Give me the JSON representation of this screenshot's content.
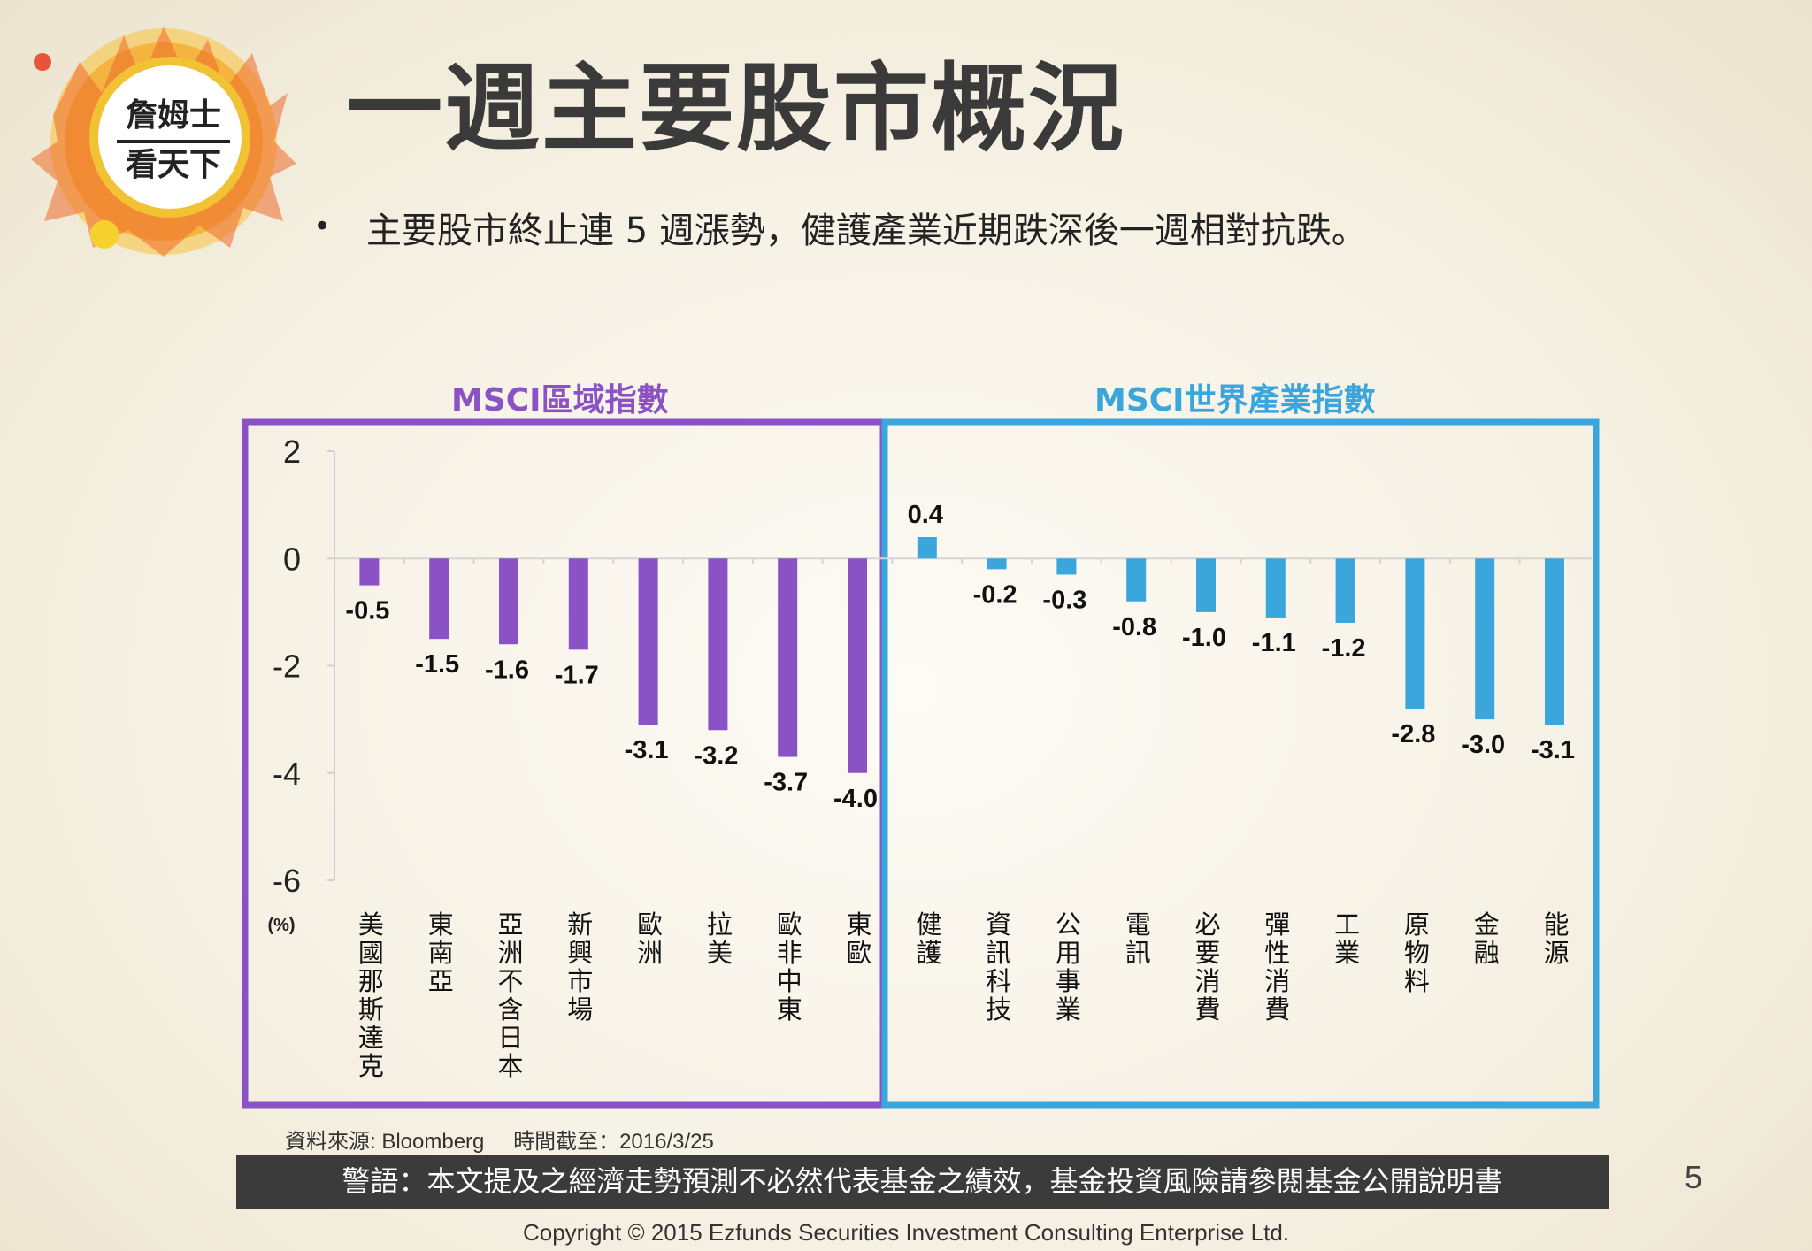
{
  "logo_text": [
    "詹姆士",
    "看天下"
  ],
  "title": "一週主要股市概況",
  "bullet": "主要股市終止連 5 週漲勢，健護產業近期跌深後一週相對抗跌。",
  "colors": {
    "msci_region": "#8a52c4",
    "msci_sector": "#3aa6dc",
    "title": "#3a3a3a"
  },
  "chart_data": {
    "type": "bar",
    "ylabel": "(%)",
    "ylim": [
      -6,
      2
    ],
    "yticks": [
      2,
      0,
      -2,
      -4,
      -6
    ],
    "grid": false,
    "groups": [
      {
        "name": "MSCI區域指數",
        "color": "#8a52c4",
        "categories": [
          "美國那斯達克",
          "東南亞",
          "亞洲不含日本",
          "新興市場",
          "歐洲",
          "拉美",
          "歐非中東",
          "東歐"
        ],
        "values": [
          -0.5,
          -1.5,
          -1.6,
          -1.7,
          -3.1,
          -3.2,
          -3.7,
          -4.0
        ],
        "labels": [
          "-0.5",
          "-1.5",
          "-1.6",
          "-1.7",
          "-3.1",
          "-3.2",
          "-3.7",
          "-4.0"
        ]
      },
      {
        "name": "MSCI世界產業指數",
        "color": "#3aa6dc",
        "categories": [
          "健護",
          "資訊科技",
          "公用事業",
          "電訊",
          "必要消費",
          "彈性消費",
          "工業",
          "原物料",
          "金融",
          "能源"
        ],
        "values": [
          0.4,
          -0.2,
          -0.3,
          -0.8,
          -1.0,
          -1.1,
          -1.2,
          -2.8,
          -3.0,
          -3.1
        ],
        "labels": [
          "0.4",
          "-0.2",
          "-0.3",
          "-0.8",
          "-1.0",
          "-1.1",
          "-1.2",
          "-2.8",
          "-3.0",
          "-3.1"
        ]
      }
    ]
  },
  "source": {
    "label": "資料來源: Bloomberg",
    "date": "時間截至：2016/3/25"
  },
  "warning": "警語：本文提及之經濟走勢預測不必然代表基金之績效，基金投資風險請參閱基金公開說明書",
  "page_number": "5",
  "copyright": "Copyright © 2015 Ezfunds Securities Investment Consulting Enterprise Ltd."
}
